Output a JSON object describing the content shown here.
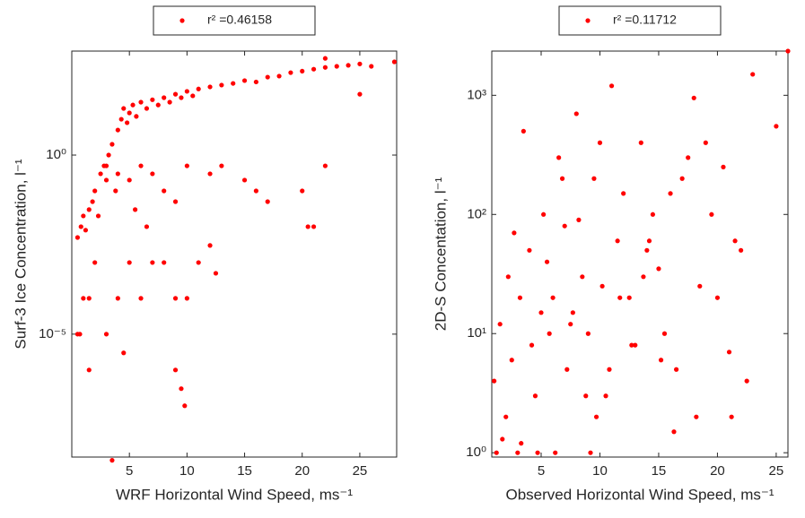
{
  "chart_data": [
    {
      "type": "scatter",
      "xlabel": "WRF Horizontal Wind Speed, ms⁻¹",
      "ylabel": "Surf-3 Ice Concentration, l⁻¹",
      "xlim": [
        0,
        28.2
      ],
      "ylim": [
        3.7e-09,
        800
      ],
      "log_y": true,
      "xticks": [
        5,
        10,
        15,
        20,
        25
      ],
      "yticks": [
        {
          "value": 1e-05,
          "label": "10⁻⁵"
        },
        {
          "value": 1,
          "label": "10⁰"
        }
      ],
      "legend": "top-outside",
      "series": [
        {
          "name": "r² =0.46158",
          "color": "#ff0000",
          "x": [
            0.5,
            0.8,
            1,
            1.2,
            1.5,
            1.8,
            2,
            2.3,
            2.5,
            2.8,
            3,
            3.2,
            3.5,
            3.8,
            4,
            4.3,
            4.5,
            4.8,
            5,
            5.3,
            5.6,
            6,
            6.5,
            7,
            7.5,
            8,
            8.5,
            9,
            9.5,
            10,
            10.5,
            11,
            12,
            13,
            14,
            15,
            16,
            17,
            18,
            19,
            20,
            21,
            22,
            23,
            24,
            25,
            26,
            28,
            22,
            25,
            3,
            4,
            5,
            6,
            7,
            8,
            9,
            10,
            12,
            13,
            15,
            16,
            17,
            20,
            21,
            22,
            20.5,
            1,
            1.5,
            2,
            3,
            4,
            5,
            6,
            7,
            8,
            9,
            10,
            12,
            9,
            9.5,
            9.8,
            3.5,
            0.5,
            0.7,
            1.5,
            4.5,
            5.5,
            11,
            12.5,
            6.5
          ],
          "values": [
            0.005,
            0.01,
            0.02,
            0.008,
            0.03,
            0.05,
            0.1,
            0.02,
            0.3,
            0.5,
            0.2,
            1,
            2,
            0.1,
            5,
            10,
            20,
            8,
            15,
            25,
            12,
            30,
            20,
            35,
            25,
            40,
            30,
            50,
            40,
            60,
            45,
            70,
            80,
            90,
            100,
            120,
            110,
            150,
            160,
            200,
            220,
            250,
            280,
            300,
            320,
            350,
            300,
            400,
            500,
            50,
            0.5,
            0.3,
            0.2,
            0.5,
            0.3,
            0.1,
            0.05,
            0.5,
            0.3,
            0.5,
            0.2,
            0.1,
            0.05,
            0.1,
            0.01,
            0.5,
            0.01,
            0.0001,
            0.0001,
            0.001,
            1e-05,
            0.0001,
            0.001,
            0.0001,
            0.001,
            0.001,
            0.0001,
            0.0001,
            0.003,
            1e-06,
            3e-07,
            1e-07,
            3e-09,
            1e-05,
            1e-05,
            1e-06,
            3e-06,
            0.03,
            0.001,
            0.0005,
            0.01
          ]
        }
      ]
    },
    {
      "type": "scatter",
      "xlabel": "Observed Horizontal Wind Speed, ms⁻¹",
      "ylabel": "2D-S Concentation, l⁻¹",
      "xlim": [
        0.8,
        26.0
      ],
      "ylim": [
        0.92,
        2350
      ],
      "log_y": true,
      "xticks": [
        5,
        10,
        15,
        20,
        25
      ],
      "yticks": [
        {
          "value": 1,
          "label": "10⁰"
        },
        {
          "value": 10,
          "label": "10¹"
        },
        {
          "value": 100,
          "label": "10²"
        },
        {
          "value": 1000,
          "label": "10³"
        }
      ],
      "legend": "top-outside",
      "series": [
        {
          "name": "r² =0.11712",
          "color": "#ff0000",
          "x": [
            1,
            1.2,
            1.5,
            2,
            2.2,
            2.5,
            3,
            3.2,
            3.5,
            4,
            4.2,
            4.5,
            5,
            5.2,
            5.5,
            6,
            6.2,
            6.5,
            7,
            7.2,
            7.5,
            8,
            8.2,
            8.5,
            9,
            9.2,
            9.5,
            10,
            10.2,
            10.5,
            11,
            11.5,
            12,
            12.5,
            13,
            13.5,
            14,
            14.5,
            15,
            15.5,
            16,
            16.5,
            17,
            17.5,
            18,
            18.5,
            19,
            19.5,
            20,
            20.5,
            21,
            21.5,
            22,
            22.5,
            23,
            25,
            26,
            3.3,
            6.8,
            8.8,
            10.8,
            14.2,
            16.3,
            2.7,
            4.7,
            7.7,
            9.7,
            12.7,
            1.7,
            5.7,
            11.7,
            13.7,
            15.2,
            18.2,
            21.2
          ],
          "values": [
            4,
            1,
            12,
            2,
            30,
            6,
            1,
            20,
            500,
            50,
            8,
            3,
            15,
            100,
            40,
            20,
            1,
            300,
            80,
            5,
            12,
            700,
            90,
            30,
            10,
            1,
            200,
            400,
            25,
            3,
            1200,
            60,
            150,
            20,
            8,
            400,
            50,
            100,
            35,
            10,
            150,
            5,
            200,
            300,
            950,
            25,
            400,
            100,
            20,
            250,
            7,
            60,
            50,
            4,
            1500,
            550,
            2350,
            1.2,
            200,
            3,
            5,
            60,
            1.5,
            70,
            1,
            15,
            2,
            8,
            1.3,
            10,
            20,
            30,
            6,
            2,
            2
          ]
        }
      ]
    }
  ]
}
